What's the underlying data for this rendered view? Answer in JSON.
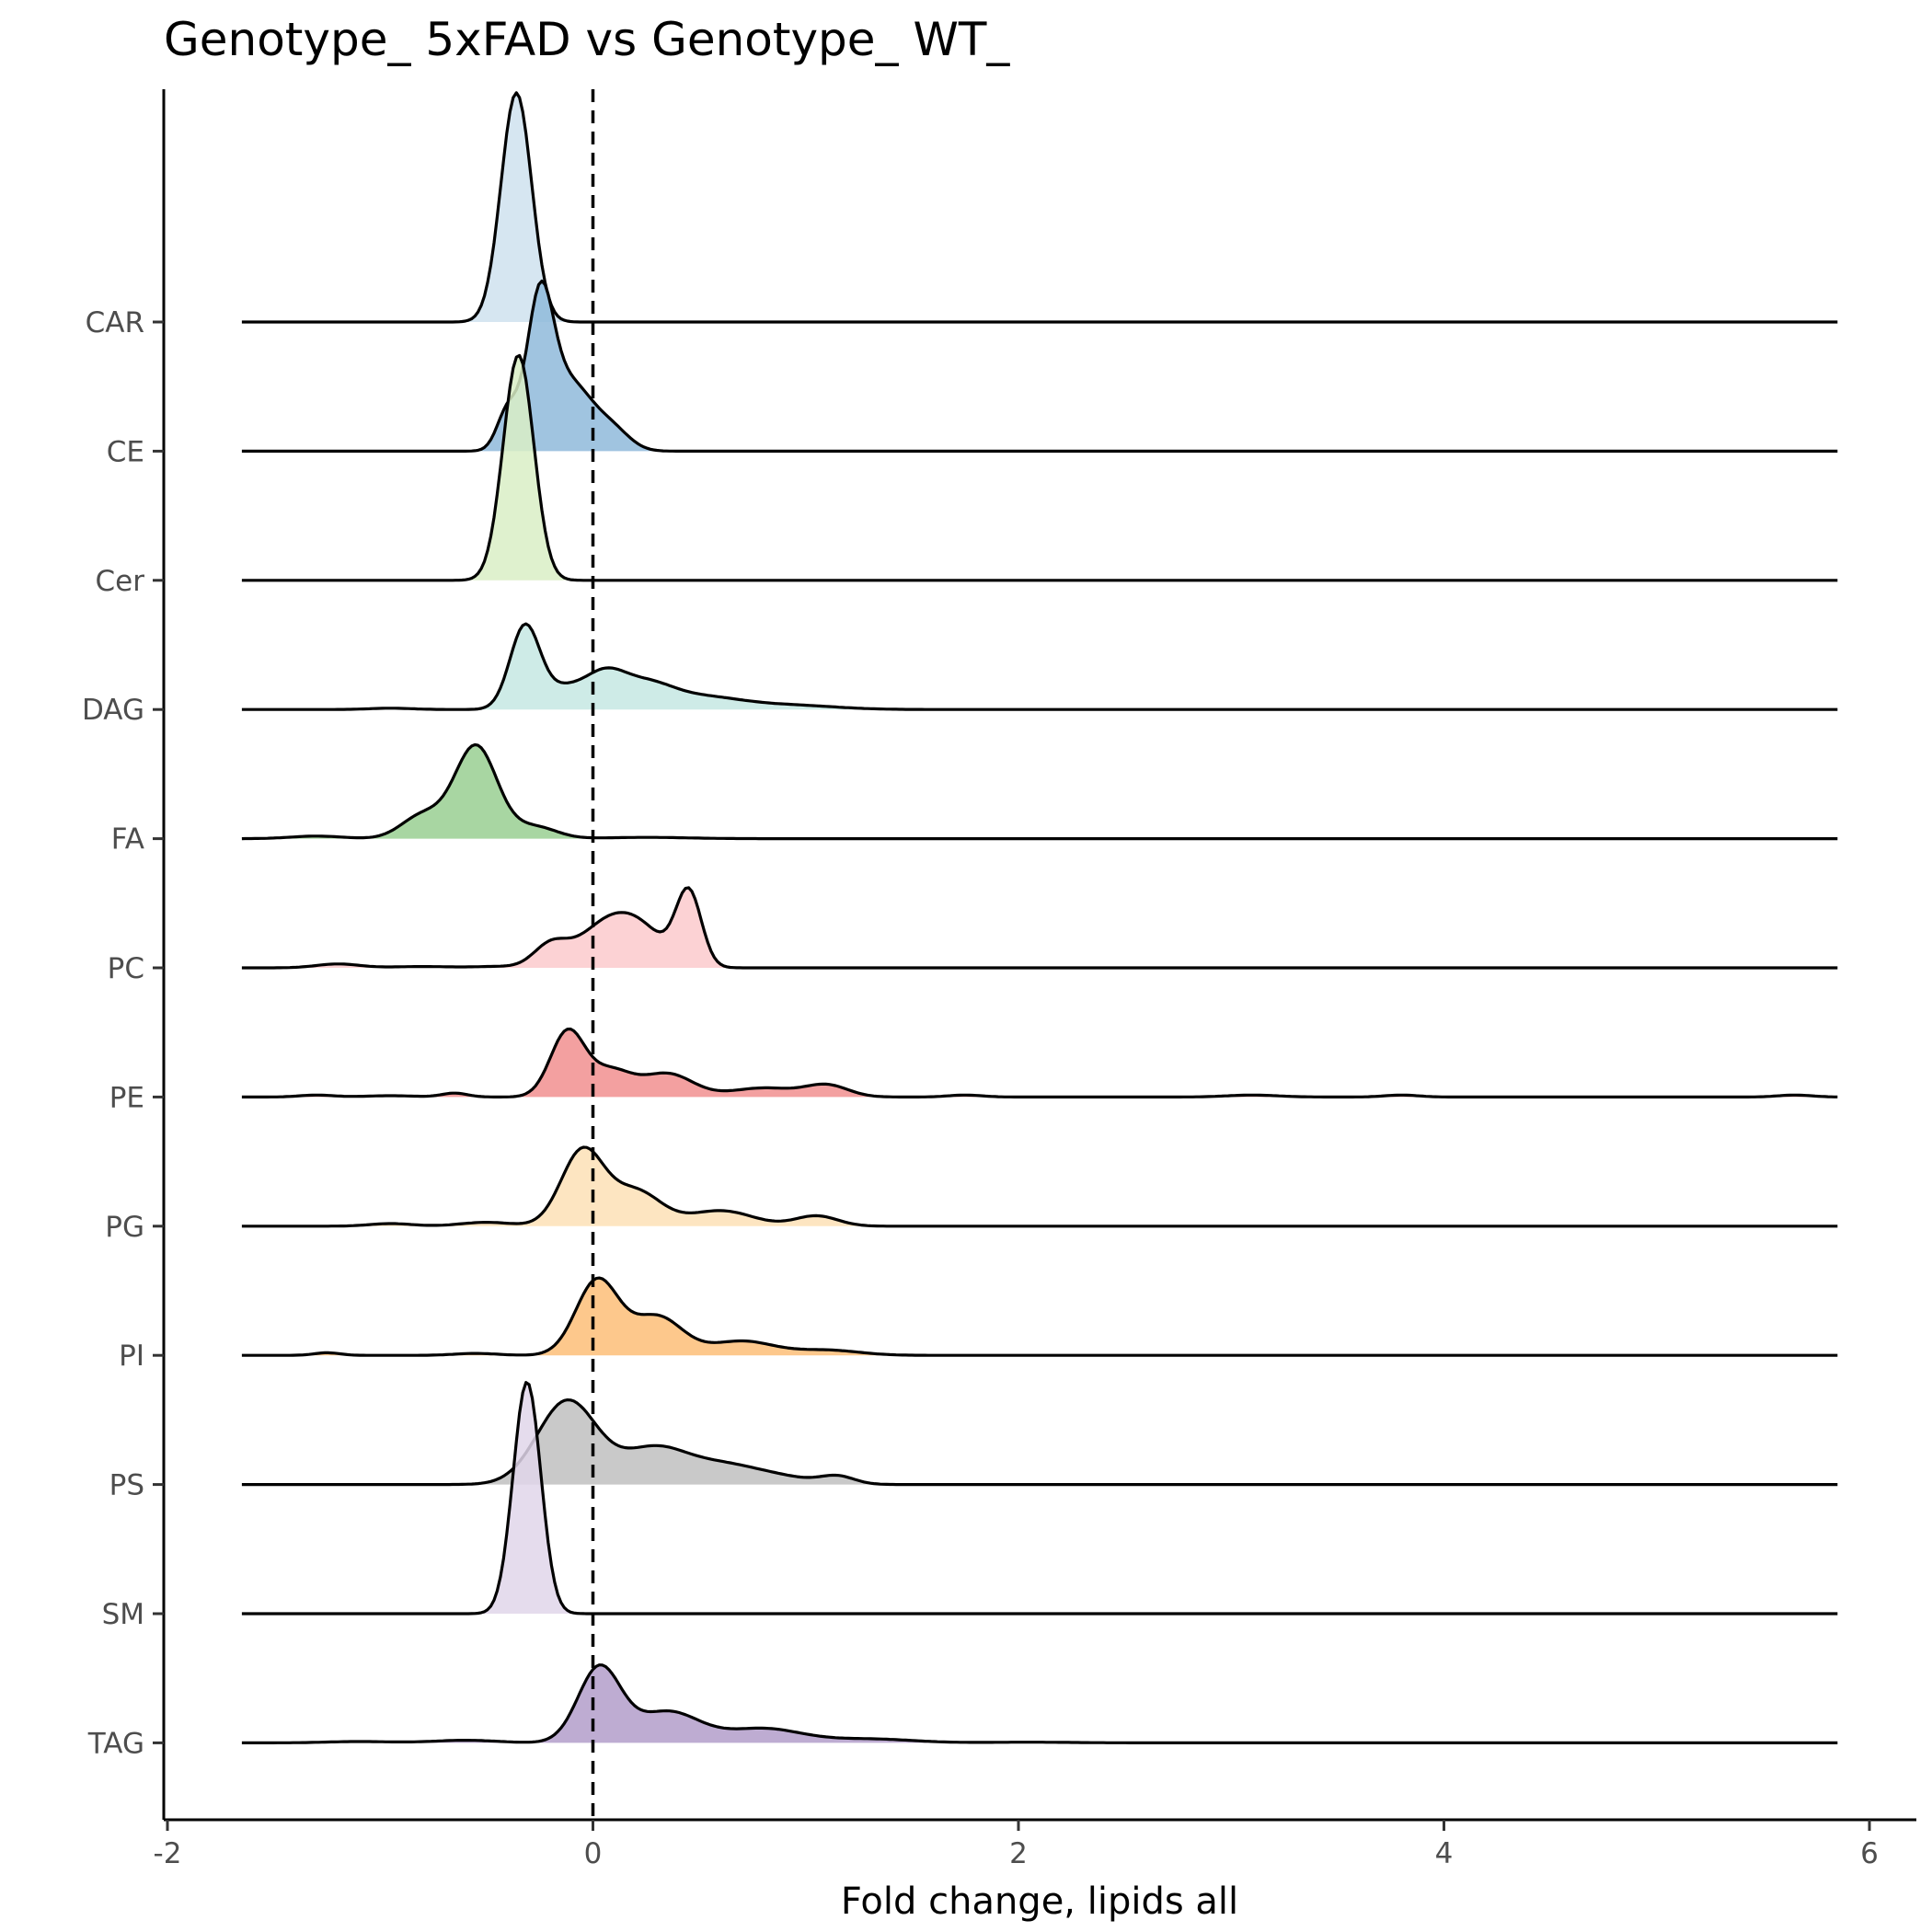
{
  "chart_data": {
    "type": "ridgeline",
    "title": "Genotype_ 5xFAD vs Genotype_ WT_",
    "xlabel": "Fold change, lipids all",
    "ylabel": "",
    "xlim": [
      -2,
      6
    ],
    "x_ticks": [
      -2,
      0,
      2,
      4,
      6
    ],
    "x_tick_labels": [
      "-2",
      "0",
      "2",
      "4",
      "6"
    ],
    "range": [
      -1.65,
      5.85
    ],
    "reference_line": {
      "x": 0,
      "style": "dashed"
    },
    "grid": false,
    "legend": "none",
    "categories": [
      "CAR",
      "CE",
      "Cer",
      "DAG",
      "FA",
      "PC",
      "PE",
      "PG",
      "PI",
      "PS",
      "SM",
      "TAG"
    ],
    "series": [
      {
        "category": "CAR",
        "color": "#cfe2ef",
        "peaks": [
          [
            -0.36,
            1.78,
            0.072
          ]
        ]
      },
      {
        "category": "CE",
        "color": "#8fbada",
        "peaks": [
          [
            -0.25,
            1.0,
            0.06
          ],
          [
            -0.12,
            0.55,
            0.12
          ],
          [
            0.1,
            0.12,
            0.08
          ],
          [
            -0.4,
            0.3,
            0.05
          ]
        ]
      },
      {
        "category": "Cer",
        "color": "#d9efc5",
        "peaks": [
          [
            -0.35,
            1.75,
            0.072
          ]
        ]
      },
      {
        "category": "DAG",
        "color": "#c6e7e3",
        "peaks": [
          [
            -0.32,
            0.64,
            0.07
          ],
          [
            -0.15,
            0.14,
            0.09
          ],
          [
            0.05,
            0.26,
            0.1
          ],
          [
            0.25,
            0.16,
            0.12
          ],
          [
            0.5,
            0.1,
            0.2
          ],
          [
            0.95,
            0.03,
            0.2
          ],
          [
            -0.95,
            0.01,
            0.1
          ]
        ]
      },
      {
        "category": "FA",
        "color": "#99cf92",
        "peaks": [
          [
            -0.55,
            0.72,
            0.1
          ],
          [
            -0.8,
            0.18,
            0.1
          ],
          [
            -0.27,
            0.09,
            0.1
          ],
          [
            -1.3,
            0.02,
            0.12
          ],
          [
            0.25,
            0.01,
            0.2
          ]
        ]
      },
      {
        "category": "PC",
        "color": "#fccacd",
        "peaks": [
          [
            0.45,
            0.57,
            0.06
          ],
          [
            0.2,
            0.33,
            0.13
          ],
          [
            -0.2,
            0.17,
            0.08
          ],
          [
            0.02,
            0.22,
            0.12
          ],
          [
            -1.2,
            0.03,
            0.1
          ],
          [
            -0.8,
            0.01,
            0.15
          ],
          [
            -0.45,
            0.01,
            0.1
          ]
        ]
      },
      {
        "category": "PE",
        "color": "#f18f8f",
        "peaks": [
          [
            -0.12,
            0.5,
            0.08
          ],
          [
            0.08,
            0.2,
            0.1
          ],
          [
            0.35,
            0.18,
            0.12
          ],
          [
            0.8,
            0.07,
            0.15
          ],
          [
            1.1,
            0.09,
            0.1
          ],
          [
            -0.65,
            0.03,
            0.06
          ],
          [
            -1.3,
            0.015,
            0.08
          ],
          [
            -0.95,
            0.01,
            0.12
          ],
          [
            1.75,
            0.015,
            0.08
          ],
          [
            3.1,
            0.015,
            0.12
          ],
          [
            3.8,
            0.015,
            0.08
          ],
          [
            5.65,
            0.015,
            0.08
          ]
        ]
      },
      {
        "category": "PG",
        "color": "#fde0b6",
        "peaks": [
          [
            -0.05,
            0.58,
            0.1
          ],
          [
            0.2,
            0.27,
            0.12
          ],
          [
            0.6,
            0.12,
            0.15
          ],
          [
            1.05,
            0.08,
            0.1
          ],
          [
            -0.5,
            0.03,
            0.12
          ],
          [
            -0.95,
            0.02,
            0.1
          ]
        ]
      },
      {
        "category": "PI",
        "color": "#fdbe78",
        "peaks": [
          [
            0.02,
            0.58,
            0.1
          ],
          [
            0.3,
            0.3,
            0.12
          ],
          [
            0.7,
            0.11,
            0.15
          ],
          [
            1.1,
            0.04,
            0.15
          ],
          [
            -1.25,
            0.02,
            0.06
          ],
          [
            -0.55,
            0.015,
            0.1
          ]
        ]
      },
      {
        "category": "PS",
        "color": "#c0c0c0",
        "peaks": [
          [
            -0.12,
            0.65,
            0.14
          ],
          [
            0.28,
            0.26,
            0.15
          ],
          [
            0.6,
            0.15,
            0.18
          ],
          [
            1.15,
            0.06,
            0.08
          ],
          [
            0.9,
            0.04,
            0.15
          ]
        ]
      },
      {
        "category": "SM",
        "color": "#e1d6ea",
        "peaks": [
          [
            -0.31,
            1.8,
            0.065
          ]
        ]
      },
      {
        "category": "TAG",
        "color": "#b39dca",
        "peaks": [
          [
            0.03,
            0.58,
            0.1
          ],
          [
            0.35,
            0.24,
            0.15
          ],
          [
            0.8,
            0.11,
            0.18
          ],
          [
            1.3,
            0.03,
            0.2
          ],
          [
            -0.6,
            0.02,
            0.15
          ],
          [
            -1.1,
            0.01,
            0.15
          ],
          [
            2.05,
            0.005,
            0.2
          ]
        ]
      }
    ]
  }
}
